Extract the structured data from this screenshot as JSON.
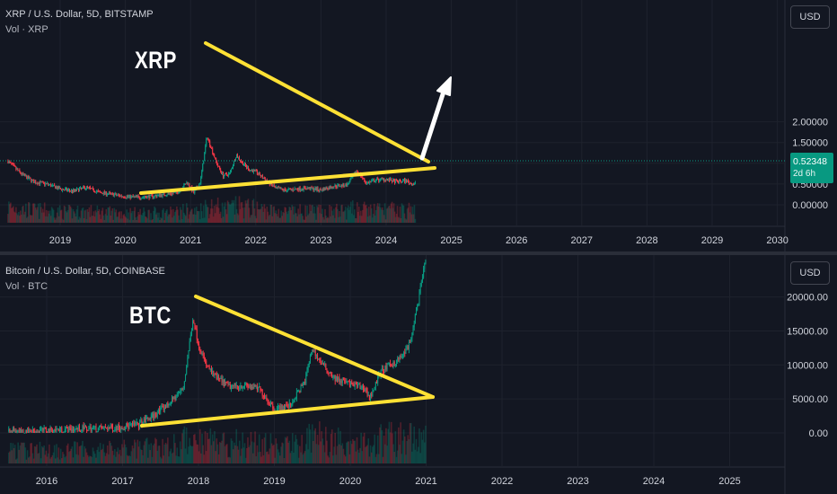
{
  "colors": {
    "background": "#131722",
    "up": "#089981",
    "down": "#f23645",
    "trendline": "#ffe135",
    "grid": "#1e222d",
    "text": "#d1d4dc",
    "arrow": "#ffffff"
  },
  "xrp_panel": {
    "legend_title": "XRP / U.S. Dollar, 5D, BITSTAMP",
    "legend_vol": "Vol · XRP",
    "currency_button": "USD",
    "annotation": "XRP",
    "last_price": "0.52348",
    "countdown": "2d 6h"
  },
  "btc_panel": {
    "legend_title": "Bitcoin / U.S. Dollar, 5D, COINBASE",
    "legend_vol": "Vol · BTC",
    "currency_button": "USD",
    "annotation": "BTC"
  },
  "chart_data": [
    {
      "type": "line",
      "title": "XRP / U.S. Dollar, 5D, BITSTAMP",
      "x_ticks": [
        "2019",
        "2020",
        "2021",
        "2022",
        "2023",
        "2024",
        "2025",
        "2026",
        "2027",
        "2028",
        "2029",
        "2030"
      ],
      "y_ticks": [
        "2.00000",
        "1.50000",
        "1.00000",
        "0.50000",
        "0.00000"
      ],
      "ylim": [
        -0.2,
        2.2
      ],
      "x_range": [
        2018.2,
        2030.1
      ],
      "series": [
        {
          "x": [
            2018.2,
            2018.4,
            2018.6,
            2018.8,
            2019.0,
            2019.2,
            2019.4,
            2019.6,
            2019.8,
            2020.0,
            2020.2,
            2020.4,
            2020.6,
            2020.8,
            2020.95,
            2021.05,
            2021.15,
            2021.25,
            2021.3,
            2021.4,
            2021.5,
            2021.6,
            2021.7,
            2021.8,
            2021.9,
            2022.0,
            2022.15,
            2022.3,
            2022.45,
            2022.6,
            2022.8,
            2023.0,
            2023.2,
            2023.4,
            2023.55,
            2023.7,
            2023.85,
            2024.0,
            2024.15,
            2024.3,
            2024.4,
            2024.45
          ],
          "y": [
            1.05,
            0.75,
            0.55,
            0.5,
            0.38,
            0.33,
            0.42,
            0.3,
            0.25,
            0.2,
            0.18,
            0.2,
            0.25,
            0.3,
            0.55,
            0.28,
            0.55,
            1.65,
            1.45,
            1.0,
            0.7,
            0.75,
            1.2,
            1.0,
            0.85,
            0.8,
            0.6,
            0.4,
            0.35,
            0.38,
            0.4,
            0.36,
            0.45,
            0.48,
            0.82,
            0.52,
            0.6,
            0.62,
            0.55,
            0.58,
            0.5,
            0.52
          ]
        }
      ]
    },
    {
      "type": "line",
      "title": "Bitcoin / U.S. Dollar, 5D, COINBASE",
      "x_ticks": [
        "2016",
        "2017",
        "2018",
        "2019",
        "2020",
        "2021",
        "2022",
        "2023",
        "2024",
        "2025"
      ],
      "y_ticks": [
        "20000.00",
        "15000.00",
        "10000.00",
        "5000.00",
        "0.00"
      ],
      "ylim": [
        -2000,
        25000
      ],
      "x_range": [
        2015.5,
        2025.6
      ],
      "series": [
        {
          "x": [
            2015.5,
            2015.8,
            2016.1,
            2016.4,
            2016.7,
            2017.0,
            2017.2,
            2017.4,
            2017.6,
            2017.8,
            2017.93,
            2018.0,
            2018.1,
            2018.2,
            2018.4,
            2018.6,
            2018.8,
            2019.0,
            2019.2,
            2019.4,
            2019.5,
            2019.6,
            2019.8,
            2020.0,
            2020.2,
            2020.25,
            2020.4,
            2020.6,
            2020.7,
            2020.8,
            2020.85,
            2020.9,
            2021.0
          ],
          "y": [
            250,
            300,
            420,
            600,
            650,
            900,
            1200,
            2500,
            4200,
            6500,
            17000,
            13000,
            10000,
            8500,
            6800,
            7000,
            6500,
            3500,
            4000,
            7500,
            12500,
            10500,
            8000,
            7200,
            6500,
            5000,
            9000,
            10500,
            11500,
            13500,
            17000,
            19500,
            26000
          ]
        }
      ]
    }
  ]
}
